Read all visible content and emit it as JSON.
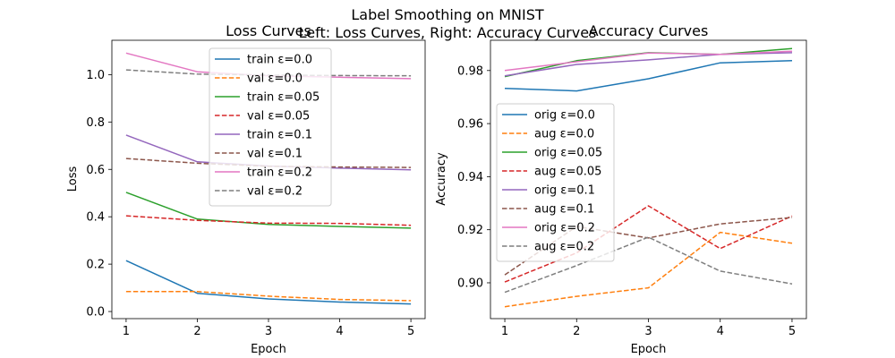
{
  "figure": {
    "suptitle_line1": "Label Smoothing on MNIST",
    "suptitle_line2": "Left: Loss Curves, Right: Accuracy Curves"
  },
  "chart_data": [
    {
      "type": "line",
      "title": "Loss Curves",
      "xlabel": "Epoch",
      "ylabel": "Loss",
      "x": [
        1,
        2,
        3,
        4,
        5
      ],
      "xticks": [
        "1",
        "2",
        "3",
        "4",
        "5"
      ],
      "yticks": [
        0.0,
        0.2,
        0.4,
        0.6,
        0.8,
        1.0
      ],
      "ytick_labels": [
        "0.0",
        "0.2",
        "0.4",
        "0.6",
        "0.8",
        "1.0"
      ],
      "ylim": [
        -0.03,
        1.145
      ],
      "xlim": [
        0.8,
        5.2
      ],
      "legend_position": "upper-center",
      "grid": false,
      "series": [
        {
          "name": "train ε=0.0",
          "color": "#1f77b4",
          "dashed": false,
          "values": [
            0.215,
            0.077,
            0.053,
            0.04,
            0.032
          ]
        },
        {
          "name": "val ε=0.0",
          "color": "#ff7f0e",
          "dashed": true,
          "values": [
            0.084,
            0.084,
            0.065,
            0.051,
            0.046
          ]
        },
        {
          "name": "train ε=0.05",
          "color": "#2ca02c",
          "dashed": false,
          "values": [
            0.503,
            0.39,
            0.368,
            0.359,
            0.352
          ]
        },
        {
          "name": "val ε=0.05",
          "color": "#d62728",
          "dashed": true,
          "values": [
            0.404,
            0.385,
            0.373,
            0.372,
            0.364
          ]
        },
        {
          "name": "train ε=0.1",
          "color": "#9467bd",
          "dashed": false,
          "values": [
            0.745,
            0.632,
            0.614,
            0.605,
            0.598
          ]
        },
        {
          "name": "val ε=0.1",
          "color": "#8c564b",
          "dashed": true,
          "values": [
            0.646,
            0.626,
            0.613,
            0.61,
            0.608
          ]
        },
        {
          "name": "train ε=0.2",
          "color": "#e377c2",
          "dashed": false,
          "values": [
            1.091,
            1.012,
            0.995,
            0.989,
            0.983
          ]
        },
        {
          "name": "val ε=0.2",
          "color": "#7f7f7f",
          "dashed": true,
          "values": [
            1.02,
            1.002,
            0.998,
            0.996,
            0.995
          ]
        }
      ]
    },
    {
      "type": "line",
      "title": "Accuracy Curves",
      "xlabel": "Epoch",
      "ylabel": "Accuracy",
      "x": [
        1,
        2,
        3,
        4,
        5
      ],
      "xticks": [
        "1",
        "2",
        "3",
        "4",
        "5"
      ],
      "yticks": [
        0.9,
        0.92,
        0.94,
        0.96,
        0.98
      ],
      "ytick_labels": [
        "0.90",
        "0.92",
        "0.94",
        "0.96",
        "0.98"
      ],
      "ylim": [
        0.8865,
        0.9914
      ],
      "xlim": [
        0.8,
        5.2
      ],
      "legend_position": "center-left",
      "grid": false,
      "series": [
        {
          "name": "orig ε=0.0",
          "color": "#1f77b4",
          "dashed": false,
          "values": [
            0.9733,
            0.9723,
            0.9769,
            0.9829,
            0.9837
          ]
        },
        {
          "name": "aug ε=0.0",
          "color": "#ff7f0e",
          "dashed": true,
          "values": [
            0.891,
            0.8949,
            0.8981,
            0.919,
            0.9149
          ]
        },
        {
          "name": "orig ε=0.05",
          "color": "#2ca02c",
          "dashed": false,
          "values": [
            0.9777,
            0.9837,
            0.9867,
            0.9861,
            0.9883
          ]
        },
        {
          "name": "aug ε=0.05",
          "color": "#d62728",
          "dashed": true,
          "values": [
            0.9003,
            0.9113,
            0.929,
            0.9129,
            0.9252
          ]
        },
        {
          "name": "orig ε=0.1",
          "color": "#9467bd",
          "dashed": false,
          "values": [
            0.978,
            0.9823,
            0.984,
            0.9861,
            0.9867
          ]
        },
        {
          "name": "aug ε=0.1",
          "color": "#8c564b",
          "dashed": true,
          "values": [
            0.903,
            0.9212,
            0.9169,
            0.9222,
            0.9246
          ]
        },
        {
          "name": "orig ε=0.2",
          "color": "#e377c2",
          "dashed": false,
          "values": [
            0.98,
            0.9833,
            0.9866,
            0.9861,
            0.9873
          ]
        },
        {
          "name": "aug ε=0.2",
          "color": "#7f7f7f",
          "dashed": true,
          "values": [
            0.8964,
            0.9065,
            0.9172,
            0.9044,
            0.8996
          ]
        }
      ]
    }
  ]
}
